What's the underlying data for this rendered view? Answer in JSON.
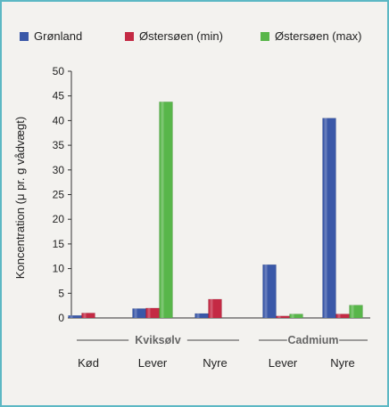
{
  "chart_data": {
    "type": "bar",
    "ylabel": "Koncentration (μ pr. g vådvægt)",
    "ylim": [
      0,
      50
    ],
    "yticks": [
      0,
      5,
      10,
      15,
      20,
      25,
      30,
      35,
      40,
      45,
      50
    ],
    "grid": false,
    "legend_position": "top",
    "categories": [
      "Kød",
      "Lever",
      "Nyre",
      "Lever",
      "Nyre"
    ],
    "groups": [
      {
        "label": "Kviksølv",
        "categories": [
          "Kød",
          "Lever",
          "Nyre"
        ]
      },
      {
        "label": "Cadmium",
        "categories": [
          "Lever",
          "Nyre"
        ]
      }
    ],
    "series": [
      {
        "name": "Grønland",
        "color": "#3a58a8",
        "values": [
          0.5,
          1.9,
          0.9,
          10.8,
          40.5
        ]
      },
      {
        "name": "Østersøen (min)",
        "color": "#c42a44",
        "values": [
          1.0,
          2.0,
          3.8,
          0.4,
          0.8
        ]
      },
      {
        "name": "Østersøen (max)",
        "color": "#58b64a",
        "values": [
          0,
          43.8,
          0,
          0.8,
          2.6
        ]
      }
    ]
  }
}
